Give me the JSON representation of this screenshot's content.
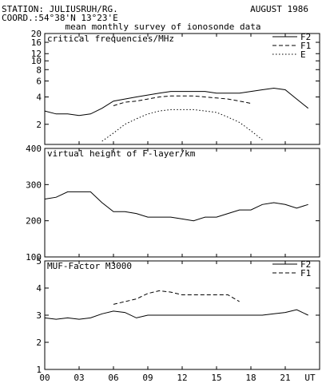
{
  "header": {
    "station": "STATION: JULIUSRUH/RG.",
    "coord": "COORD.:54°38'N 13°23'E",
    "date": "AUGUST 1986",
    "subtitle": "mean monthly survey of ionosonde data"
  },
  "x_axis": {
    "ticks": [
      0,
      3,
      6,
      9,
      12,
      15,
      18,
      21
    ],
    "tick_labels": [
      "00",
      "03",
      "06",
      "09",
      "12",
      "15",
      "18",
      "21"
    ],
    "unit_label": "UT",
    "range": [
      0,
      24
    ]
  },
  "chart_data": [
    {
      "type": "line",
      "title": "critical frequencies/MHz",
      "y_scale": "log",
      "ylim": [
        1.2,
        20
      ],
      "yticks": [
        2,
        4,
        6,
        8,
        10,
        12,
        16,
        20
      ],
      "grid": false,
      "legend_position": "top-right",
      "series": [
        {
          "name": "F2",
          "style": "solid",
          "x": [
            0,
            1,
            2,
            3,
            4,
            5,
            6,
            7,
            8,
            9,
            10,
            11,
            12,
            13,
            14,
            15,
            16,
            17,
            18,
            19,
            20,
            21,
            22,
            23
          ],
          "y": [
            2.8,
            2.6,
            2.6,
            2.5,
            2.6,
            3.0,
            3.6,
            3.8,
            4.0,
            4.2,
            4.4,
            4.6,
            4.6,
            4.6,
            4.6,
            4.4,
            4.4,
            4.4,
            4.6,
            4.8,
            5.0,
            4.8,
            3.8,
            3.0
          ]
        },
        {
          "name": "F1",
          "style": "dashed",
          "x": [
            6,
            7,
            8,
            9,
            10,
            11,
            12,
            13,
            14,
            15,
            16,
            17,
            18
          ],
          "y": [
            3.2,
            3.5,
            3.6,
            3.8,
            4.0,
            4.1,
            4.1,
            4.1,
            4.0,
            3.9,
            3.8,
            3.6,
            3.4
          ]
        },
        {
          "name": "E",
          "style": "dotted",
          "x": [
            5,
            6,
            7,
            8,
            9,
            10,
            11,
            12,
            13,
            14,
            15,
            16,
            17,
            18,
            19
          ],
          "y": [
            1.3,
            1.6,
            2.0,
            2.3,
            2.6,
            2.8,
            2.9,
            2.9,
            2.9,
            2.8,
            2.7,
            2.4,
            2.1,
            1.7,
            1.35
          ]
        }
      ]
    },
    {
      "type": "line",
      "title": "virtual height of F-layer/km",
      "ylim": [
        100,
        400
      ],
      "yticks": [
        100,
        200,
        300,
        400
      ],
      "grid": false,
      "series": [
        {
          "style": "solid",
          "x": [
            0,
            1,
            2,
            3,
            4,
            5,
            6,
            7,
            8,
            9,
            10,
            11,
            12,
            13,
            14,
            15,
            16,
            17,
            18,
            19,
            20,
            21,
            22,
            23
          ],
          "y": [
            260,
            265,
            280,
            280,
            280,
            250,
            225,
            225,
            220,
            210,
            210,
            210,
            205,
            200,
            210,
            210,
            220,
            230,
            230,
            245,
            250,
            245,
            235,
            245
          ]
        }
      ]
    },
    {
      "type": "line",
      "title": "MUF-Factor M3000",
      "ylim": [
        1,
        5
      ],
      "yticks": [
        1,
        2,
        3,
        4,
        5
      ],
      "grid": false,
      "legend_position": "top-right",
      "series": [
        {
          "name": "F2",
          "style": "solid",
          "x": [
            0,
            1,
            2,
            3,
            4,
            5,
            6,
            7,
            8,
            9,
            10,
            11,
            12,
            13,
            14,
            15,
            16,
            17,
            18,
            19,
            20,
            21,
            22,
            23
          ],
          "y": [
            2.9,
            2.85,
            2.9,
            2.85,
            2.9,
            3.05,
            3.15,
            3.1,
            2.9,
            3.0,
            3.0,
            3.0,
            3.0,
            3.0,
            3.0,
            3.0,
            3.0,
            3.0,
            3.0,
            3.0,
            3.05,
            3.1,
            3.2,
            3.0
          ]
        },
        {
          "name": "F1",
          "style": "dashed",
          "x": [
            6,
            7,
            8,
            9,
            10,
            11,
            12,
            13,
            14,
            15,
            16,
            17
          ],
          "y": [
            3.4,
            3.5,
            3.6,
            3.8,
            3.9,
            3.85,
            3.75,
            3.75,
            3.75,
            3.75,
            3.75,
            3.5
          ]
        }
      ]
    }
  ]
}
